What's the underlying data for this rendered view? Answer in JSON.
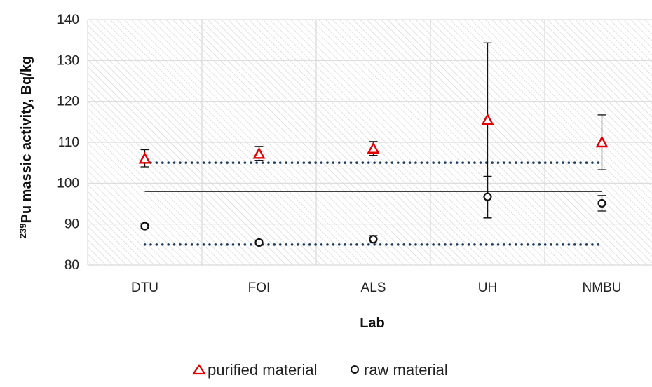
{
  "chart_data": {
    "type": "scatter",
    "categories": [
      "DTU",
      "FOI",
      "ALS",
      "UH",
      "NMBU"
    ],
    "xlabel": "Lab",
    "ylabel_sup": "239",
    "ylabel_main": "Pu massic activity, Bq/kg",
    "ylim": [
      80,
      140
    ],
    "yticks": [
      80,
      90,
      100,
      110,
      120,
      130,
      140
    ],
    "grid": true,
    "legend_position": "bottom",
    "series": [
      {
        "name": "purified material",
        "marker": "triangle",
        "color": "#e00000",
        "values": [
          106,
          107.2,
          108.5,
          115.5,
          110
        ],
        "err_low": [
          104,
          105.6,
          106.8,
          91.5,
          103.3
        ],
        "err_high": [
          108.2,
          109,
          110.2,
          134.3,
          116.7
        ]
      },
      {
        "name": "raw material",
        "marker": "circle",
        "color": "#111111",
        "values": [
          89.5,
          85.5,
          86.3,
          96.7,
          95.1
        ],
        "err_low": [
          88.9,
          84.9,
          85.4,
          91.7,
          93.2
        ],
        "err_high": [
          90.1,
          86.1,
          87.2,
          101.7,
          97
        ]
      }
    ],
    "reference_line": {
      "value": 98,
      "color": "#000000"
    },
    "limit_lines": {
      "values": [
        105,
        85
      ],
      "color": "#1f3a5f"
    }
  }
}
